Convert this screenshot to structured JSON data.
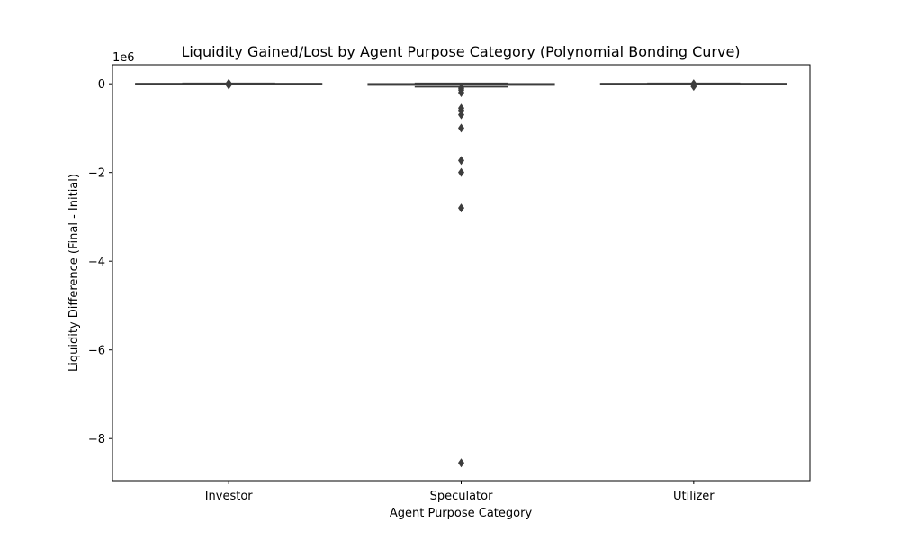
{
  "chart_data": {
    "type": "box",
    "title": "Liquidity Gained/Lost by Agent Purpose Category (Polynomial Bonding Curve)",
    "xlabel": "Agent Purpose Category",
    "ylabel": "Liquidity Difference (Final - Initial)",
    "y_offset_label": "1e6",
    "y_scale": 1000000,
    "ylim": [
      -8.95,
      0.43
    ],
    "yticks": [
      0,
      -2,
      -4,
      -6,
      -8
    ],
    "ytick_labels": [
      "0",
      "−2",
      "−4",
      "−6",
      "−8"
    ],
    "categories": [
      "Investor",
      "Speculator",
      "Utilizer"
    ],
    "boxes": [
      {
        "category": "Investor",
        "q1": -0.005,
        "median": 0.0,
        "q3": 0.005,
        "whisker_low": -0.01,
        "whisker_high": 0.01,
        "outliers": [
          0.01,
          -0.01,
          -0.03
        ]
      },
      {
        "category": "Speculator",
        "q1": -0.03,
        "median": -0.01,
        "q3": 0.0,
        "whisker_low": -0.07,
        "whisker_high": 0.01,
        "outliers": [
          -0.1,
          -0.14,
          -0.2,
          -0.55,
          -0.6,
          -0.7,
          -1.0,
          -1.73,
          -2.0,
          -2.8,
          -8.55
        ]
      },
      {
        "category": "Utilizer",
        "q1": -0.005,
        "median": 0.0,
        "q3": 0.005,
        "whisker_low": -0.01,
        "whisker_high": 0.01,
        "outliers": [
          0.0,
          -0.02,
          -0.06
        ]
      }
    ],
    "colors": {
      "box": "#3d3d3d",
      "flier": "#3d3d3d"
    },
    "grid": false,
    "legend": "none"
  }
}
